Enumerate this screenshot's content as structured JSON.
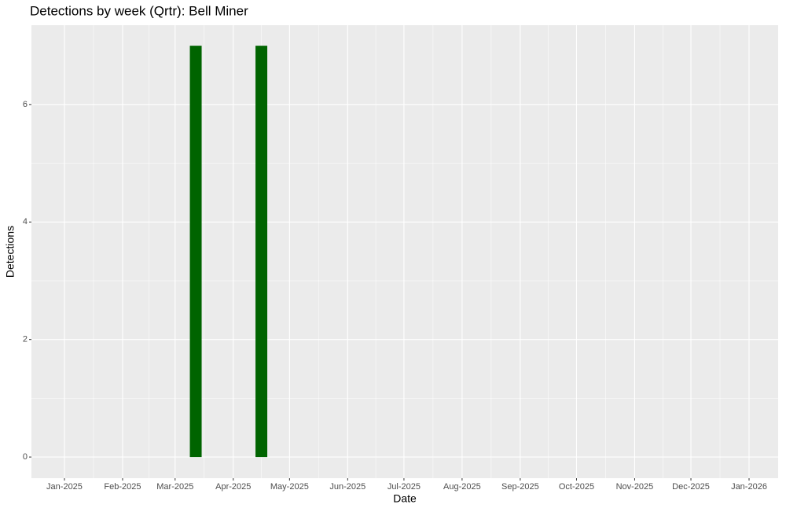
{
  "chart_data": {
    "type": "bar",
    "title": "Detections by week (Qrtr): Bell Miner",
    "x_label": "Date",
    "y_label": "Detections",
    "x": [
      70,
      105
    ],
    "values": [
      7,
      7
    ],
    "color": "#006400",
    "xlim": [
      -17.6,
      380.5
    ],
    "xticks": [
      {
        "value": 0,
        "label": "Jan-2025"
      },
      {
        "value": 31,
        "label": "Feb-2025"
      },
      {
        "value": 59,
        "label": "Mar-2025"
      },
      {
        "value": 90,
        "label": "Apr-2025"
      },
      {
        "value": 120,
        "label": "May-2025"
      },
      {
        "value": 151,
        "label": "Jun-2025"
      },
      {
        "value": 181,
        "label": "Jul-2025"
      },
      {
        "value": 212,
        "label": "Aug-2025"
      },
      {
        "value": 243,
        "label": "Sep-2025"
      },
      {
        "value": 273,
        "label": "Oct-2025"
      },
      {
        "value": 304,
        "label": "Nov-2025"
      },
      {
        "value": 334,
        "label": "Dec-2025"
      },
      {
        "value": 365,
        "label": "Jan-2026"
      }
    ],
    "ylim": [
      -0.36,
      7.35
    ],
    "yticks": [
      0,
      2,
      4,
      6
    ],
    "grid": true
  }
}
